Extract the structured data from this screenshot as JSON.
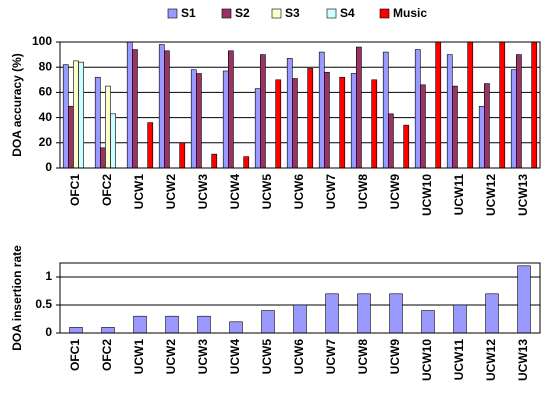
{
  "chart_data": [
    {
      "type": "bar",
      "y_label": "DOA accuracy (%)",
      "categories": [
        "OFC1",
        "OFC2",
        "UCW1",
        "UCW2",
        "UCW3",
        "UCW4",
        "UCW5",
        "UCW6",
        "UCW7",
        "UCW8",
        "UCW9",
        "UCW10",
        "UCW11",
        "UCW12",
        "UCW13"
      ],
      "series": [
        {
          "name": "S1",
          "color": "#9999ff",
          "values": [
            82,
            72,
            100,
            98,
            78,
            77,
            63,
            87,
            92,
            75,
            92,
            94,
            90,
            49,
            78
          ]
        },
        {
          "name": "S2",
          "color": "#993366",
          "values": [
            49,
            16,
            94,
            93,
            75,
            93,
            90,
            71,
            76,
            96,
            43,
            66,
            65,
            67,
            90
          ]
        },
        {
          "name": "S3",
          "color": "#ffffcc",
          "values": [
            85,
            65,
            null,
            null,
            null,
            null,
            null,
            null,
            null,
            null,
            null,
            null,
            null,
            null,
            null
          ]
        },
        {
          "name": "S4",
          "color": "#ccffff",
          "values": [
            84,
            43,
            null,
            null,
            null,
            null,
            null,
            null,
            null,
            null,
            null,
            null,
            null,
            null,
            null
          ]
        },
        {
          "name": "Music",
          "color": "#ff0000",
          "values": [
            null,
            null,
            36,
            20,
            11,
            9,
            70,
            79,
            72,
            70,
            34,
            100,
            100,
            100,
            100
          ]
        }
      ],
      "ylim": [
        0,
        100
      ],
      "yticks": [
        0,
        20,
        40,
        60,
        80,
        100
      ],
      "grid": true,
      "legend": "top"
    },
    {
      "type": "bar",
      "y_label": "DOA insertion rate",
      "categories": [
        "OFC1",
        "OFC2",
        "UCW1",
        "UCW2",
        "UCW3",
        "UCW4",
        "UCW5",
        "UCW6",
        "UCW7",
        "UCW8",
        "UCW9",
        "UCW10",
        "UCW11",
        "UCW12",
        "UCW13"
      ],
      "series": [
        {
          "color": "#9999ff",
          "values": [
            0.1,
            0.1,
            0.3,
            0.3,
            0.3,
            0.2,
            0.4,
            0.5,
            0.7,
            0.7,
            0.7,
            0.4,
            0.5,
            0.7,
            1.2
          ]
        }
      ],
      "ylim": [
        0,
        1.25
      ],
      "yticks": [
        0,
        0.5,
        1
      ],
      "grid": true
    }
  ]
}
